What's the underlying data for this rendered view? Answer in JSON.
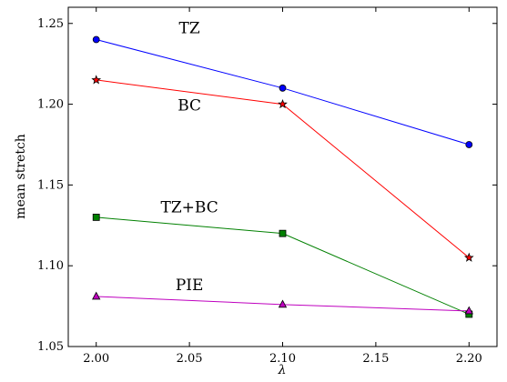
{
  "chart_data": {
    "type": "line",
    "title": "",
    "xlabel": "λ",
    "ylabel": "mean stretch",
    "xlim": [
      1.985,
      2.215
    ],
    "ylim": [
      1.05,
      1.26
    ],
    "xticks": [
      2.0,
      2.05,
      2.1,
      2.15,
      2.2
    ],
    "xtick_labels": [
      "2.00",
      "2.05",
      "2.10",
      "2.15",
      "2.20"
    ],
    "yticks": [
      1.05,
      1.1,
      1.15,
      1.2,
      1.25
    ],
    "ytick_labels": [
      "1.05",
      "1.10",
      "1.15",
      "1.20",
      "1.25"
    ],
    "grid": false,
    "legend": "none (series labeled by inline text annotations)",
    "x": [
      2.0,
      2.1,
      2.2
    ],
    "series": [
      {
        "name": "TZ",
        "color": "#0000ff",
        "marker": "circle",
        "values": [
          1.24,
          1.21,
          1.175
        ],
        "label_anchor": [
          2.05,
          1.244
        ]
      },
      {
        "name": "BC",
        "color": "#ff0000",
        "marker": "star",
        "values": [
          1.215,
          1.2,
          1.105
        ],
        "label_anchor": [
          2.05,
          1.196
        ]
      },
      {
        "name": "TZ+BC",
        "color": "#008000",
        "marker": "square",
        "values": [
          1.13,
          1.12,
          1.07
        ],
        "label_anchor": [
          2.05,
          1.133
        ]
      },
      {
        "name": "PIE",
        "color": "#bf00bf",
        "marker": "triangle",
        "values": [
          1.081,
          1.076,
          1.072
        ],
        "label_anchor": [
          2.05,
          1.085
        ]
      }
    ]
  }
}
